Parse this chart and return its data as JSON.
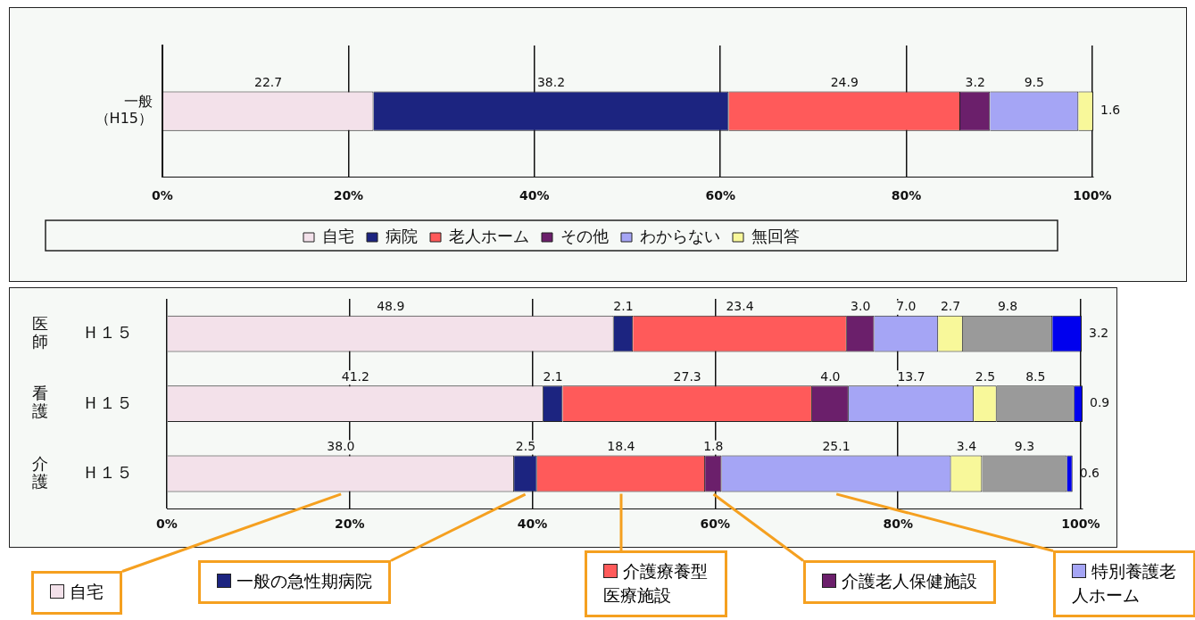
{
  "chart_data": [
    {
      "type": "bar",
      "orientation": "horizontal",
      "stacked": true,
      "categories": [
        "一般（H15）"
      ],
      "series": [
        {
          "name": "自宅",
          "color": "#f3e1ea",
          "values": [
            22.7
          ]
        },
        {
          "name": "病院",
          "color": "#1c2480",
          "values": [
            38.2
          ]
        },
        {
          "name": "老人ホーム",
          "color": "#ff5a5a",
          "values": [
            24.9
          ]
        },
        {
          "name": "その他",
          "color": "#6b1f6b",
          "values": [
            3.2
          ]
        },
        {
          "name": "わからない",
          "color": "#a5a5f5",
          "values": [
            9.5
          ]
        },
        {
          "name": "無回答",
          "color": "#f8f89a",
          "values": [
            1.6
          ]
        }
      ],
      "xlim": [
        0,
        100.1
      ],
      "xticks": [
        {
          "value": 0,
          "label": "0%"
        },
        {
          "value": 20,
          "label": "20%"
        },
        {
          "value": 40,
          "label": "40%"
        },
        {
          "value": 60,
          "label": "60%"
        },
        {
          "value": 80,
          "label": "80%"
        },
        {
          "value": 100,
          "label": "100%"
        }
      ],
      "grid": "x",
      "legend": "bottom",
      "data_labels": true
    },
    {
      "type": "bar",
      "orientation": "horizontal",
      "stacked": true,
      "categories": [
        "医師\nＨ１５",
        "看護\nＨ１５",
        "介護\nＨ１５"
      ],
      "series": [
        {
          "name": "自宅",
          "color": "#f3e1ea",
          "values": [
            48.9,
            41.2,
            38.0
          ],
          "value_labels": [
            "48.9",
            "41.2",
            "38.0"
          ]
        },
        {
          "name": "一般の急性期病院",
          "color": "#1c2480",
          "values": [
            2.1,
            2.1,
            2.5
          ],
          "value_labels": [
            "2.1",
            "2.1",
            "2.5"
          ]
        },
        {
          "name": "介護療養型医療施設",
          "color": "#ff5a5a",
          "values": [
            23.4,
            27.3,
            18.4
          ],
          "value_labels": [
            "23.4",
            "27.3",
            "18.4"
          ]
        },
        {
          "name": "介護老人保健施設",
          "color": "#6b1f6b",
          "values": [
            3.0,
            4.0,
            1.8
          ],
          "value_labels": [
            "3.0",
            "4.0",
            "1.8"
          ]
        },
        {
          "name": "特別養護老人ホーム",
          "color": "#a5a5f5",
          "values": [
            7.0,
            13.7,
            25.1
          ],
          "value_labels": [
            "7.0",
            "13.7",
            "25.1"
          ]
        },
        {
          "color": "#f8f89a",
          "values": [
            2.7,
            2.5,
            3.4
          ],
          "value_labels": [
            "2.7",
            "2.5",
            "3.4"
          ]
        },
        {
          "color": "#9a9a9a",
          "values": [
            9.8,
            8.5,
            9.3
          ],
          "value_labels": [
            "9.8",
            "8.5",
            "9.3"
          ]
        },
        {
          "color": "#0000ee",
          "values": [
            3.2,
            0.9,
            0.6
          ],
          "value_labels": [
            "3.2",
            "0.9",
            "0.6"
          ]
        }
      ],
      "xlim": [
        0,
        100.2
      ],
      "xticks": [
        {
          "value": 0,
          "label": "0%"
        },
        {
          "value": 20,
          "label": "20%"
        },
        {
          "value": 40,
          "label": "40%"
        },
        {
          "value": 60,
          "label": "60%"
        },
        {
          "value": 80,
          "label": "80%"
        },
        {
          "value": 100,
          "label": "100%"
        }
      ],
      "grid": "x",
      "legend": "bottom"
    }
  ]
}
